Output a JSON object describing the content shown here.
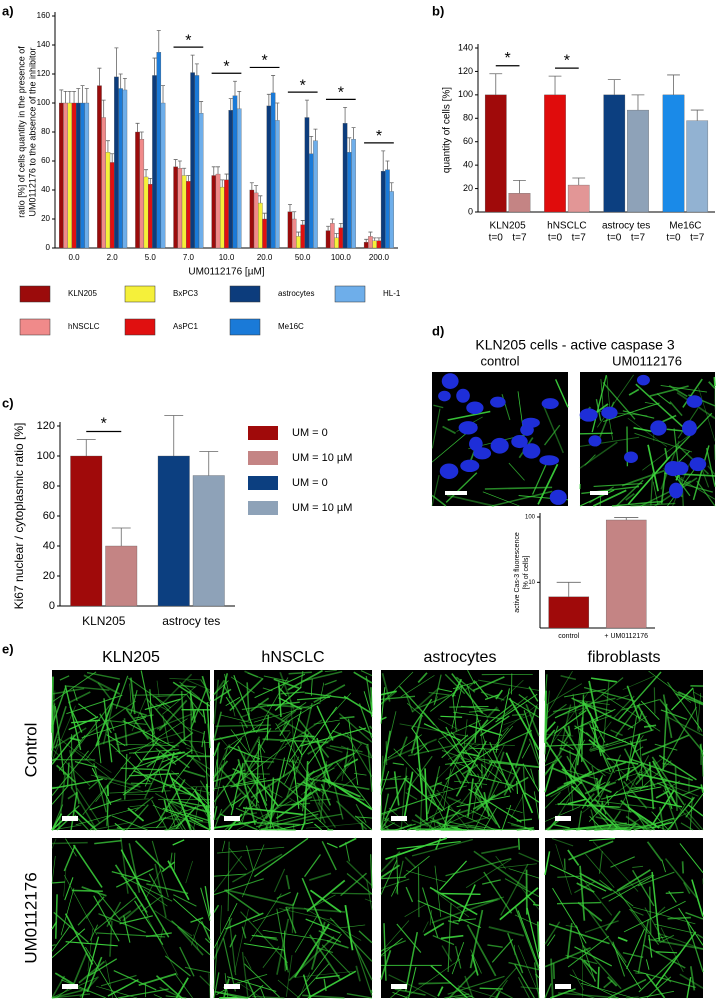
{
  "chart_data": [
    {
      "panel_label": "a)",
      "type": "bar",
      "ylabel": [
        "ratio [%] of cells quantity in the presence of",
        "UM0112176 to the absence of the inhibitor"
      ],
      "xlabel": "UM0112176 [µM]",
      "categories": [
        "0.0",
        "2.0",
        "5.0",
        "7.0",
        "10.0",
        "20.0",
        "50.0",
        "100.0",
        "200.0"
      ],
      "series": [
        {
          "name": "KLN205",
          "color": "#9b0b0b",
          "values": [
            100,
            112,
            80,
            56,
            50,
            40,
            25,
            12,
            4
          ],
          "errors": [
            9,
            12,
            6,
            5,
            6,
            5,
            5,
            3,
            2
          ]
        },
        {
          "name": "hNSCLC",
          "color": "#f08a8a",
          "values": [
            100,
            90,
            75,
            55,
            51,
            38,
            20,
            17,
            8
          ],
          "errors": [
            8,
            12,
            5,
            5,
            5,
            5,
            5,
            3,
            3
          ]
        },
        {
          "name": "BxPC3",
          "color": "#f5f03a",
          "values": [
            100,
            66,
            49,
            50,
            42,
            31,
            8,
            7,
            5
          ],
          "errors": [
            8,
            8,
            5,
            5,
            5,
            5,
            3,
            3,
            2
          ]
        },
        {
          "name": "AsPC1",
          "color": "#e01010",
          "values": [
            100,
            59,
            44,
            46,
            47,
            20,
            16,
            14,
            5
          ],
          "errors": [
            8,
            6,
            4,
            4,
            4,
            4,
            3,
            3,
            2
          ]
        },
        {
          "name": "astrocytes",
          "color": "#0c3c7c",
          "values": [
            100,
            118,
            119,
            121,
            95,
            98,
            90,
            86,
            53
          ],
          "errors": [
            10,
            20,
            12,
            12,
            8,
            8,
            12,
            11,
            14
          ]
        },
        {
          "name": "Me16C",
          "color": "#1a7ad8",
          "values": [
            100,
            110,
            135,
            119,
            105,
            107,
            65,
            66,
            54
          ],
          "errors": [
            12,
            10,
            15,
            8,
            10,
            12,
            12,
            10,
            6
          ]
        },
        {
          "name": "HL-1",
          "color": "#6eaeea",
          "values": [
            100,
            109,
            100,
            93,
            96,
            88,
            74,
            75,
            39
          ],
          "errors": [
            10,
            8,
            12,
            8,
            12,
            12,
            8,
            8,
            6
          ]
        }
      ],
      "ylim": [
        0,
        160
      ],
      "yticks": [
        0,
        20,
        40,
        60,
        80,
        100,
        120,
        140,
        160
      ],
      "significance": [
        {
          "label": "*",
          "category": "7.0"
        },
        {
          "label": "*",
          "category": "10.0"
        },
        {
          "label": "*",
          "category": "20.0"
        },
        {
          "label": "*",
          "category": "50.0"
        },
        {
          "label": "*",
          "category": "100.0"
        },
        {
          "label": "*",
          "category": "200.0"
        }
      ]
    },
    {
      "panel_label": "b)",
      "type": "bar",
      "ylabel": [
        "quantity of cells [%]"
      ],
      "groups": [
        "KLN205",
        "hNSCLC",
        "astrocy tes",
        "Me16C"
      ],
      "categories": [
        "t=0",
        "t=7",
        "t=0",
        "t=7",
        "t=0",
        "t=7",
        "t=0",
        "t=7"
      ],
      "values": [
        100,
        16,
        100,
        23,
        100,
        87,
        100,
        78
      ],
      "errors": [
        18,
        11,
        16,
        6,
        13,
        13,
        17,
        9
      ],
      "colors": [
        "#a00a0a",
        "#c48484",
        "#e00c0c",
        "#e29696",
        "#0c3f80",
        "#8ea2b8",
        "#1a8ae8",
        "#92b2d2"
      ],
      "ylim": [
        0,
        140
      ],
      "yticks": [
        0,
        20,
        40,
        60,
        80,
        100,
        120,
        140
      ],
      "significance": [
        {
          "label": "*",
          "group": "KLN205"
        },
        {
          "label": "*",
          "group": "hNSCLC"
        }
      ]
    },
    {
      "panel_label": "c)",
      "type": "bar",
      "ylabel": [
        "Ki67 nuclear / cytoplasmic ratio [%]"
      ],
      "groups": [
        "KLN205",
        "astrocy tes"
      ],
      "values": [
        100,
        40,
        100,
        87
      ],
      "errors": [
        11,
        12,
        27,
        16
      ],
      "colors": [
        "#a00a0a",
        "#c48484",
        "#0c3f80",
        "#8ea2b8"
      ],
      "legend": [
        {
          "label": "UM = 0",
          "color": "#a00a0a"
        },
        {
          "label": "UM = 10 µM",
          "color": "#c48484"
        },
        {
          "label": "UM = 0",
          "color": "#0c3f80"
        },
        {
          "label": "UM = 10 µM",
          "color": "#8ea2b8"
        }
      ],
      "ylim": [
        0,
        120
      ],
      "yticks": [
        0,
        20,
        40,
        60,
        80,
        100,
        120
      ],
      "significance": [
        {
          "label": "*",
          "group": "KLN205"
        }
      ]
    },
    {
      "type": "bar",
      "log_scale": true,
      "ylabel": [
        "active Cas-3 fluorescence",
        "[% of cells]"
      ],
      "categories": [
        "control",
        "+ UM0112176"
      ],
      "values": [
        6,
        90
      ],
      "errors": [
        4,
        8
      ],
      "colors": [
        "#a00a0a",
        "#c48484"
      ],
      "ylim": [
        2,
        100
      ],
      "yticks": [
        10,
        100
      ]
    }
  ],
  "panel_d": {
    "panel_label": "d)",
    "title": "KLN205 cells - active caspase 3",
    "image_labels": [
      "control",
      "UM0112176"
    ]
  },
  "panel_e": {
    "panel_label": "e)",
    "columns": [
      "KLN205",
      "hNSCLC",
      "astrocytes",
      "fibroblasts"
    ],
    "rows": [
      "Control",
      "UM0112176"
    ]
  }
}
